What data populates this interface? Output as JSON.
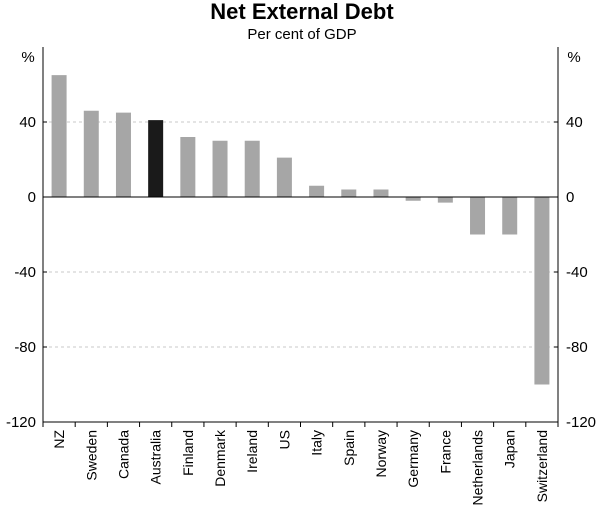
{
  "chart_data": {
    "type": "bar",
    "title": "Net External Debt",
    "subtitle": "Per cent of GDP",
    "ylabel_left": "%",
    "ylabel_right": "%",
    "ylim": [
      -120,
      80
    ],
    "yticks": [
      40,
      0,
      -40,
      -80,
      -120
    ],
    "ytick_labels": [
      "40",
      "0",
      "-40",
      "-80",
      "-120"
    ],
    "grid": "dashed horizontal at ticks",
    "categories": [
      "NZ",
      "Sweden",
      "Canada",
      "Australia",
      "Finland",
      "Denmark",
      "Ireland",
      "US",
      "Italy",
      "Spain",
      "Norway",
      "Germany",
      "France",
      "Netherlands",
      "Japan",
      "Switzerland"
    ],
    "values": [
      65,
      46,
      45,
      41,
      32,
      30,
      30,
      21,
      6,
      4,
      4,
      -2,
      -3,
      -20,
      -20,
      -100
    ],
    "highlight": "Australia",
    "colors": {
      "bar": "#a6a6a6",
      "highlight": "#1a1a1a",
      "grid": "#c8c8c8",
      "axis": "#000000"
    }
  }
}
